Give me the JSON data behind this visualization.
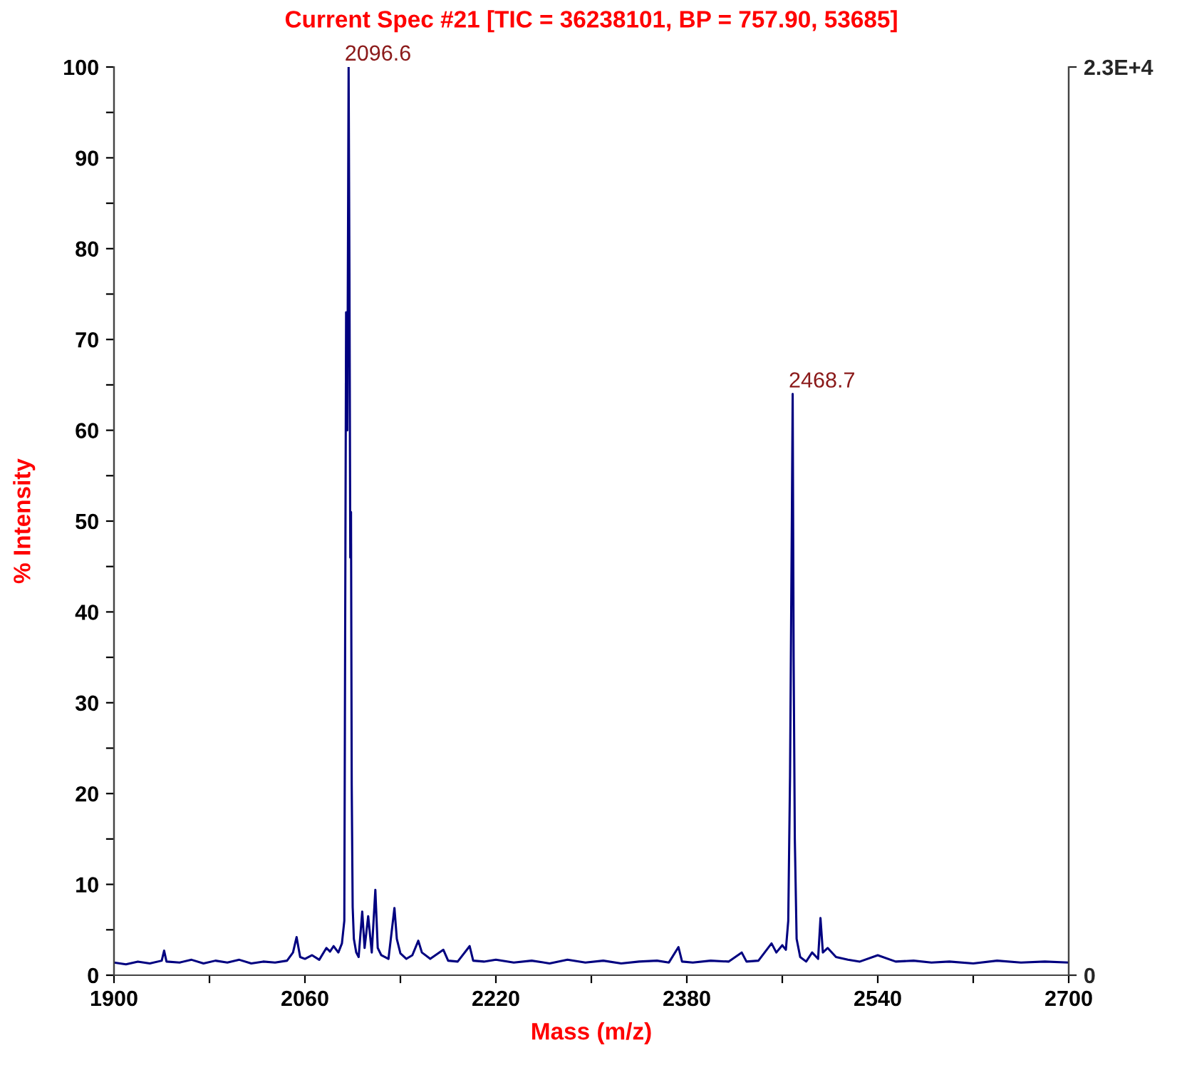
{
  "chart_data": {
    "type": "line",
    "title": "Current Spec #21 [TIC = 36238101, BP = 757.90, 53685]",
    "xlabel": "Mass (m/z)",
    "ylabel": "% Intensity",
    "series": [
      {
        "color": "#000080",
        "x": [
          1900,
          1910,
          1920,
          1930,
          1940,
          1942,
          1944,
          1955,
          1965,
          1975,
          1985,
          1995,
          2005,
          2015,
          2025,
          2035,
          2045,
          2050,
          2053,
          2056,
          2060,
          2066,
          2072,
          2078,
          2081,
          2084,
          2088,
          2091,
          2093,
          2094.5,
          2095.5,
          2096.6,
          2097.3,
          2098,
          2098.6,
          2099.2,
          2100,
          2101,
          2103,
          2105,
          2108,
          2110,
          2113,
          2116,
          2119,
          2121,
          2124,
          2130,
          2135,
          2137,
          2140,
          2145,
          2150,
          2155,
          2158,
          2165,
          2176,
          2180,
          2188,
          2198,
          2201,
          2210,
          2220,
          2235,
          2250,
          2265,
          2280,
          2295,
          2310,
          2325,
          2340,
          2355,
          2365,
          2373,
          2376,
          2385,
          2400,
          2415,
          2426,
          2430,
          2440,
          2451,
          2455,
          2460,
          2463,
          2465,
          2466.5,
          2468,
          2468.7,
          2469.5,
          2470.5,
          2472,
          2475,
          2480,
          2485,
          2490,
          2492,
          2494,
          2498,
          2505,
          2515,
          2525,
          2540,
          2555,
          2570,
          2585,
          2600,
          2620,
          2640,
          2660,
          2680,
          2700
        ],
        "values": [
          1.4,
          1.2,
          1.5,
          1.3,
          1.6,
          2.7,
          1.5,
          1.4,
          1.7,
          1.3,
          1.6,
          1.4,
          1.7,
          1.3,
          1.5,
          1.4,
          1.6,
          2.5,
          4.2,
          2.0,
          1.8,
          2.2,
          1.7,
          3.0,
          2.6,
          3.2,
          2.5,
          3.5,
          6.0,
          73,
          60,
          100,
          77,
          46,
          51,
          21,
          7.5,
          4,
          2.5,
          2.0,
          7.0,
          3.0,
          6.5,
          2.5,
          9.4,
          3.0,
          2.2,
          1.8,
          7.4,
          4.0,
          2.4,
          1.8,
          2.2,
          3.8,
          2.5,
          1.8,
          2.8,
          1.6,
          1.5,
          3.2,
          1.6,
          1.5,
          1.7,
          1.4,
          1.6,
          1.3,
          1.7,
          1.4,
          1.6,
          1.3,
          1.5,
          1.6,
          1.4,
          3.1,
          1.5,
          1.4,
          1.6,
          1.5,
          2.5,
          1.5,
          1.6,
          3.5,
          2.5,
          3.3,
          2.8,
          6.0,
          22,
          50,
          64,
          35,
          15,
          4.0,
          2.0,
          1.5,
          2.5,
          1.8,
          6.3,
          2.5,
          3.0,
          2.0,
          1.7,
          1.5,
          2.2,
          1.5,
          1.6,
          1.4,
          1.5,
          1.3,
          1.6,
          1.4,
          1.5,
          1.4
        ]
      }
    ],
    "annotations": [
      {
        "text": "2096.6",
        "x": 2096.6,
        "y": 100
      },
      {
        "text": "2468.7",
        "x": 2468.7,
        "y": 64
      }
    ],
    "xlim": [
      1900,
      2700
    ],
    "xticks": [
      1900,
      {
        "value": 1980,
        "label": null
      },
      2060,
      {
        "value": 2140,
        "label": null
      },
      2220,
      {
        "value": 2300,
        "label": null
      },
      2380,
      {
        "value": 2460,
        "label": null
      },
      2540,
      {
        "value": 2620,
        "label": null
      },
      2700
    ],
    "ylim": [
      0,
      100
    ],
    "yticks": [
      0,
      {
        "value": 5,
        "label": null
      },
      10,
      {
        "value": 15,
        "label": null
      },
      20,
      {
        "value": 25,
        "label": null
      },
      30,
      {
        "value": 35,
        "label": null
      },
      40,
      {
        "value": 45,
        "label": null
      },
      50,
      {
        "value": 55,
        "label": null
      },
      60,
      {
        "value": 65,
        "label": null
      },
      70,
      {
        "value": 75,
        "label": null
      },
      80,
      {
        "value": 85,
        "label": null
      },
      90,
      {
        "value": 95,
        "label": null
      },
      100
    ],
    "y2lim": [
      0,
      23000
    ],
    "y2ticks": [
      0,
      {
        "value": 23000,
        "label": "2.3E+4"
      }
    ],
    "grid": false,
    "legend": false,
    "marker": "none",
    "line_style": "solid"
  }
}
